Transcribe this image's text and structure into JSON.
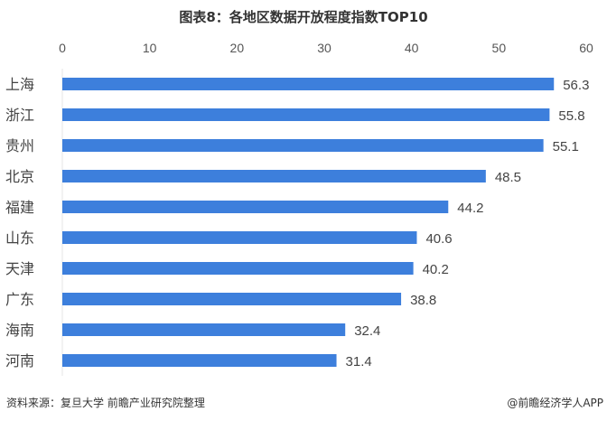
{
  "chart_data": {
    "type": "bar",
    "orientation": "horizontal",
    "title": "图表8：各地区数据开放程度指数TOP10",
    "categories": [
      "上海",
      "浙江",
      "贵州",
      "北京",
      "福建",
      "山东",
      "天津",
      "广东",
      "海南",
      "河南"
    ],
    "values": [
      56.3,
      55.8,
      55.1,
      48.5,
      44.2,
      40.6,
      40.2,
      38.8,
      32.4,
      31.4
    ],
    "value_labels": [
      "56.3",
      "55.8",
      "55.1",
      "48.5",
      "44.2",
      "40.6",
      "40.2",
      "38.8",
      "32.4",
      "31.4"
    ],
    "xlim": [
      0,
      60
    ],
    "ticks": [
      "0",
      "10",
      "20",
      "30",
      "40",
      "50",
      "60"
    ],
    "axis_position": "top",
    "grid": false,
    "bar_color": "#3d7fdc"
  },
  "footer": {
    "source": "资料来源：复旦大学 前瞻产业研究院整理",
    "credit": "@前瞻经济学人APP"
  }
}
